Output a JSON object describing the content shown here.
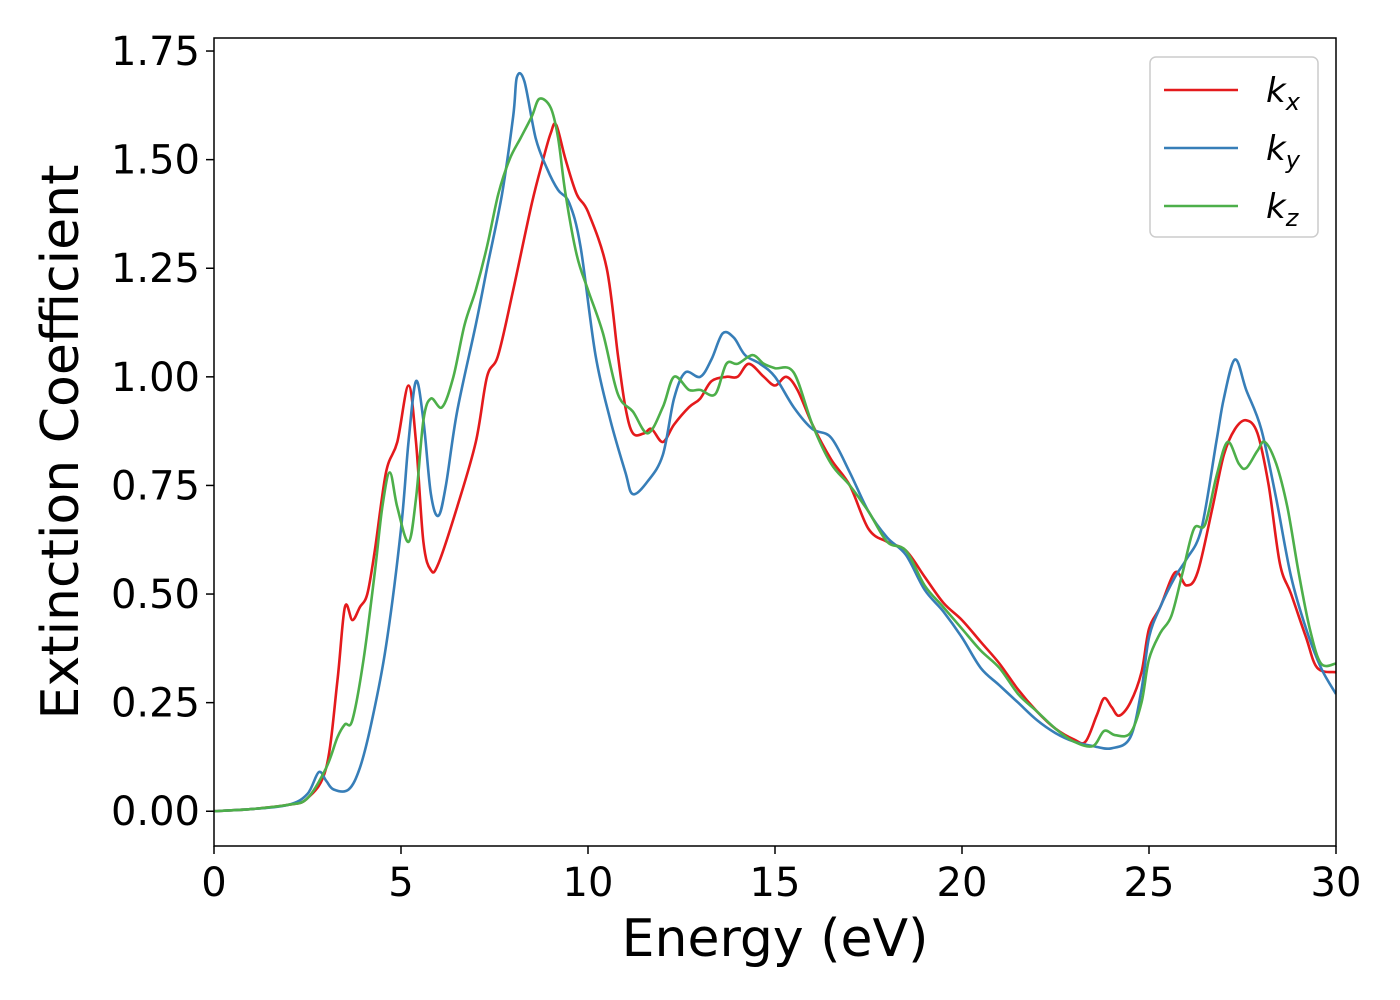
{
  "chart_data": {
    "type": "line",
    "xlabel": "Energy (eV)",
    "ylabel": "Extinction Coefficient",
    "xlim": [
      0,
      30
    ],
    "ylim": [
      -0.08,
      1.78
    ],
    "x_ticks": [
      0,
      5,
      10,
      15,
      20,
      25,
      30
    ],
    "x_tick_labels": [
      "0",
      "5",
      "10",
      "15",
      "20",
      "25",
      "30"
    ],
    "y_ticks": [
      0,
      0.25,
      0.5,
      0.75,
      1.0,
      1.25,
      1.5,
      1.75
    ],
    "y_tick_labels": [
      "0.00",
      "0.25",
      "0.50",
      "0.75",
      "1.00",
      "1.25",
      "1.50",
      "1.75"
    ],
    "grid": false,
    "legend_position": "top-right",
    "series": [
      {
        "name": "k",
        "subscript": "x",
        "color": "#e41a1c",
        "points": [
          [
            0,
            0
          ],
          [
            1,
            0.005
          ],
          [
            2,
            0.015
          ],
          [
            2.5,
            0.03
          ],
          [
            3,
            0.1
          ],
          [
            3.3,
            0.3
          ],
          [
            3.5,
            0.47
          ],
          [
            3.7,
            0.44
          ],
          [
            3.9,
            0.47
          ],
          [
            4.1,
            0.5
          ],
          [
            4.3,
            0.6
          ],
          [
            4.6,
            0.78
          ],
          [
            4.9,
            0.85
          ],
          [
            5.2,
            0.98
          ],
          [
            5.4,
            0.85
          ],
          [
            5.6,
            0.62
          ],
          [
            5.8,
            0.555
          ],
          [
            6.0,
            0.57
          ],
          [
            6.5,
            0.7
          ],
          [
            7.0,
            0.85
          ],
          [
            7.3,
            1.0
          ],
          [
            7.6,
            1.05
          ],
          [
            8.0,
            1.2
          ],
          [
            8.5,
            1.4
          ],
          [
            8.8,
            1.5
          ],
          [
            9.0,
            1.56
          ],
          [
            9.15,
            1.58
          ],
          [
            9.4,
            1.5
          ],
          [
            9.7,
            1.42
          ],
          [
            10.0,
            1.38
          ],
          [
            10.5,
            1.25
          ],
          [
            10.8,
            1.05
          ],
          [
            11.0,
            0.93
          ],
          [
            11.2,
            0.87
          ],
          [
            11.5,
            0.87
          ],
          [
            11.7,
            0.88
          ],
          [
            12.0,
            0.85
          ],
          [
            12.3,
            0.89
          ],
          [
            12.7,
            0.93
          ],
          [
            13.0,
            0.95
          ],
          [
            13.3,
            0.99
          ],
          [
            13.7,
            1.0
          ],
          [
            14.0,
            1.0
          ],
          [
            14.3,
            1.03
          ],
          [
            14.7,
            1.0
          ],
          [
            15.0,
            0.98
          ],
          [
            15.3,
            1.0
          ],
          [
            15.6,
            0.97
          ],
          [
            16.0,
            0.89
          ],
          [
            16.5,
            0.81
          ],
          [
            17.0,
            0.75
          ],
          [
            17.5,
            0.65
          ],
          [
            18.0,
            0.62
          ],
          [
            18.5,
            0.6
          ],
          [
            19.0,
            0.54
          ],
          [
            19.5,
            0.48
          ],
          [
            20.0,
            0.44
          ],
          [
            20.5,
            0.39
          ],
          [
            21.0,
            0.34
          ],
          [
            21.5,
            0.28
          ],
          [
            22.0,
            0.23
          ],
          [
            22.5,
            0.19
          ],
          [
            23.0,
            0.165
          ],
          [
            23.3,
            0.16
          ],
          [
            23.6,
            0.22
          ],
          [
            23.8,
            0.26
          ],
          [
            24.0,
            0.24
          ],
          [
            24.2,
            0.22
          ],
          [
            24.5,
            0.25
          ],
          [
            24.8,
            0.32
          ],
          [
            25.0,
            0.42
          ],
          [
            25.3,
            0.47
          ],
          [
            25.7,
            0.55
          ],
          [
            26.0,
            0.52
          ],
          [
            26.3,
            0.55
          ],
          [
            26.7,
            0.7
          ],
          [
            27.0,
            0.82
          ],
          [
            27.3,
            0.88
          ],
          [
            27.6,
            0.9
          ],
          [
            27.9,
            0.87
          ],
          [
            28.2,
            0.75
          ],
          [
            28.5,
            0.57
          ],
          [
            28.8,
            0.5
          ],
          [
            29.2,
            0.4
          ],
          [
            29.5,
            0.33
          ],
          [
            30,
            0.32
          ]
        ]
      },
      {
        "name": "k",
        "subscript": "y",
        "color": "#377eb8",
        "points": [
          [
            0,
            0
          ],
          [
            1,
            0.005
          ],
          [
            2,
            0.015
          ],
          [
            2.5,
            0.04
          ],
          [
            2.8,
            0.09
          ],
          [
            3.0,
            0.07
          ],
          [
            3.2,
            0.05
          ],
          [
            3.6,
            0.05
          ],
          [
            3.9,
            0.1
          ],
          [
            4.2,
            0.2
          ],
          [
            4.6,
            0.38
          ],
          [
            5.0,
            0.65
          ],
          [
            5.2,
            0.85
          ],
          [
            5.4,
            0.99
          ],
          [
            5.6,
            0.9
          ],
          [
            5.8,
            0.73
          ],
          [
            6.0,
            0.68
          ],
          [
            6.2,
            0.75
          ],
          [
            6.5,
            0.92
          ],
          [
            7.0,
            1.12
          ],
          [
            7.3,
            1.25
          ],
          [
            7.7,
            1.42
          ],
          [
            8.0,
            1.6
          ],
          [
            8.1,
            1.69
          ],
          [
            8.3,
            1.68
          ],
          [
            8.6,
            1.55
          ],
          [
            8.9,
            1.48
          ],
          [
            9.2,
            1.43
          ],
          [
            9.5,
            1.4
          ],
          [
            9.8,
            1.3
          ],
          [
            10.2,
            1.05
          ],
          [
            10.6,
            0.9
          ],
          [
            11.0,
            0.78
          ],
          [
            11.2,
            0.73
          ],
          [
            11.6,
            0.76
          ],
          [
            12.0,
            0.82
          ],
          [
            12.3,
            0.95
          ],
          [
            12.6,
            1.01
          ],
          [
            13.0,
            1.0
          ],
          [
            13.3,
            1.04
          ],
          [
            13.6,
            1.1
          ],
          [
            13.9,
            1.09
          ],
          [
            14.2,
            1.05
          ],
          [
            14.6,
            1.03
          ],
          [
            15.0,
            1.0
          ],
          [
            15.5,
            0.93
          ],
          [
            16.0,
            0.88
          ],
          [
            16.5,
            0.86
          ],
          [
            17.0,
            0.78
          ],
          [
            17.5,
            0.69
          ],
          [
            18.0,
            0.63
          ],
          [
            18.5,
            0.59
          ],
          [
            19.0,
            0.51
          ],
          [
            19.5,
            0.46
          ],
          [
            20.0,
            0.4
          ],
          [
            20.5,
            0.33
          ],
          [
            21.0,
            0.29
          ],
          [
            21.5,
            0.25
          ],
          [
            22.0,
            0.21
          ],
          [
            22.5,
            0.18
          ],
          [
            23.0,
            0.16
          ],
          [
            23.5,
            0.15
          ],
          [
            24.0,
            0.145
          ],
          [
            24.5,
            0.17
          ],
          [
            24.8,
            0.28
          ],
          [
            25.0,
            0.4
          ],
          [
            25.3,
            0.47
          ],
          [
            25.7,
            0.54
          ],
          [
            26.0,
            0.58
          ],
          [
            26.4,
            0.65
          ],
          [
            26.8,
            0.85
          ],
          [
            27.0,
            0.95
          ],
          [
            27.3,
            1.04
          ],
          [
            27.6,
            0.97
          ],
          [
            28.0,
            0.88
          ],
          [
            28.4,
            0.72
          ],
          [
            28.8,
            0.54
          ],
          [
            29.2,
            0.42
          ],
          [
            29.6,
            0.33
          ],
          [
            30,
            0.27
          ]
        ]
      },
      {
        "name": "k",
        "subscript": "z",
        "color": "#4daf4a",
        "points": [
          [
            0,
            0
          ],
          [
            1,
            0.005
          ],
          [
            2,
            0.015
          ],
          [
            2.5,
            0.03
          ],
          [
            3.0,
            0.1
          ],
          [
            3.3,
            0.17
          ],
          [
            3.5,
            0.2
          ],
          [
            3.7,
            0.21
          ],
          [
            4.0,
            0.35
          ],
          [
            4.3,
            0.55
          ],
          [
            4.5,
            0.7
          ],
          [
            4.7,
            0.78
          ],
          [
            4.9,
            0.7
          ],
          [
            5.2,
            0.62
          ],
          [
            5.4,
            0.72
          ],
          [
            5.6,
            0.9
          ],
          [
            5.8,
            0.95
          ],
          [
            6.1,
            0.93
          ],
          [
            6.4,
            1.0
          ],
          [
            6.7,
            1.12
          ],
          [
            7.0,
            1.2
          ],
          [
            7.3,
            1.3
          ],
          [
            7.6,
            1.42
          ],
          [
            7.9,
            1.5
          ],
          [
            8.2,
            1.55
          ],
          [
            8.5,
            1.6
          ],
          [
            8.7,
            1.64
          ],
          [
            9.0,
            1.62
          ],
          [
            9.2,
            1.55
          ],
          [
            9.4,
            1.42
          ],
          [
            9.7,
            1.28
          ],
          [
            10.0,
            1.2
          ],
          [
            10.4,
            1.1
          ],
          [
            10.8,
            0.96
          ],
          [
            11.2,
            0.92
          ],
          [
            11.6,
            0.87
          ],
          [
            12.0,
            0.93
          ],
          [
            12.3,
            1.0
          ],
          [
            12.7,
            0.97
          ],
          [
            13.0,
            0.97
          ],
          [
            13.4,
            0.96
          ],
          [
            13.7,
            1.03
          ],
          [
            14.0,
            1.03
          ],
          [
            14.4,
            1.05
          ],
          [
            14.7,
            1.03
          ],
          [
            15.0,
            1.02
          ],
          [
            15.5,
            1.01
          ],
          [
            16.0,
            0.89
          ],
          [
            16.5,
            0.8
          ],
          [
            17.0,
            0.75
          ],
          [
            17.5,
            0.69
          ],
          [
            18.0,
            0.62
          ],
          [
            18.5,
            0.6
          ],
          [
            19.0,
            0.52
          ],
          [
            19.5,
            0.47
          ],
          [
            20.0,
            0.42
          ],
          [
            20.5,
            0.37
          ],
          [
            21.0,
            0.33
          ],
          [
            21.5,
            0.27
          ],
          [
            22.0,
            0.23
          ],
          [
            22.5,
            0.19
          ],
          [
            23.0,
            0.16
          ],
          [
            23.5,
            0.15
          ],
          [
            23.8,
            0.185
          ],
          [
            24.1,
            0.175
          ],
          [
            24.5,
            0.18
          ],
          [
            24.8,
            0.25
          ],
          [
            25.0,
            0.35
          ],
          [
            25.3,
            0.41
          ],
          [
            25.6,
            0.45
          ],
          [
            25.9,
            0.55
          ],
          [
            26.2,
            0.65
          ],
          [
            26.5,
            0.66
          ],
          [
            26.8,
            0.77
          ],
          [
            27.1,
            0.85
          ],
          [
            27.4,
            0.8
          ],
          [
            27.6,
            0.79
          ],
          [
            27.9,
            0.83
          ],
          [
            28.1,
            0.85
          ],
          [
            28.4,
            0.8
          ],
          [
            28.7,
            0.7
          ],
          [
            29.0,
            0.55
          ],
          [
            29.3,
            0.42
          ],
          [
            29.6,
            0.34
          ],
          [
            30,
            0.34
          ]
        ]
      }
    ]
  }
}
